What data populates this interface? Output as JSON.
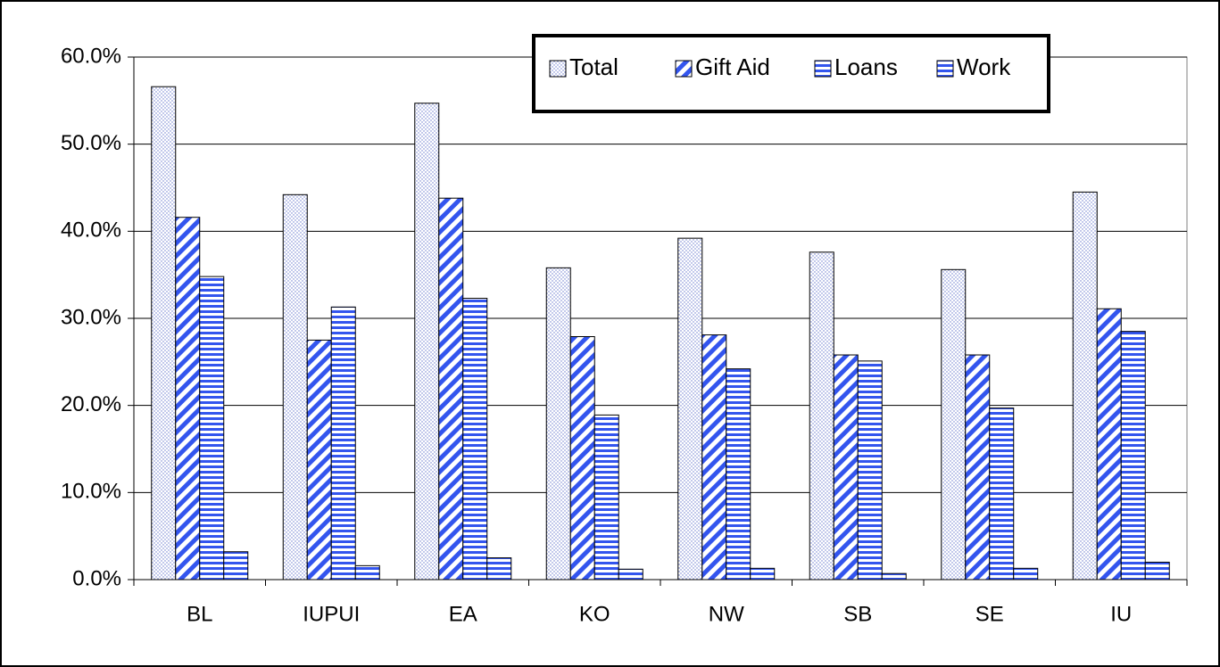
{
  "chart_data": {
    "type": "bar",
    "categories": [
      "BL",
      "IUPUI",
      "EA",
      "KO",
      "NW",
      "SB",
      "SE",
      "IU"
    ],
    "series": [
      {
        "name": "Total",
        "color": "#dde3ff",
        "pattern": "dots",
        "values": [
          56.6,
          44.2,
          54.7,
          35.8,
          39.2,
          37.6,
          35.6,
          44.5
        ]
      },
      {
        "name": "Gift Aid",
        "color": "#3355ee",
        "pattern": "diagonal",
        "values": [
          41.6,
          27.5,
          43.8,
          27.9,
          28.1,
          25.8,
          25.8,
          31.1
        ]
      },
      {
        "name": "Loans",
        "color": "#3355ee",
        "pattern": "horizontal",
        "values": [
          34.8,
          31.3,
          32.3,
          18.9,
          24.2,
          25.1,
          19.7,
          28.5
        ]
      },
      {
        "name": "Work",
        "color": "#3355ee",
        "pattern": "horizontal",
        "values": [
          3.2,
          1.6,
          2.5,
          1.2,
          1.3,
          0.7,
          1.3,
          2.0
        ]
      }
    ],
    "ylim": [
      0,
      60
    ],
    "yticks": [
      {
        "value": 0,
        "label": "0.0%"
      },
      {
        "value": 10,
        "label": "10.0%"
      },
      {
        "value": 20,
        "label": "20.0%"
      },
      {
        "value": 30,
        "label": "30.0%"
      },
      {
        "value": 40,
        "label": "40.0%"
      },
      {
        "value": 50,
        "label": "50.0%"
      },
      {
        "value": 60,
        "label": "60.0%"
      }
    ],
    "grid": true,
    "legend": "top-right"
  }
}
